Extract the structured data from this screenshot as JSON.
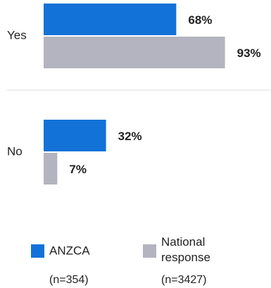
{
  "chart_data": {
    "type": "hbar",
    "categories": [
      "Yes",
      "No"
    ],
    "series": [
      {
        "name": "ANZCA",
        "color": "#1272d8",
        "values": [
          68,
          32
        ],
        "value_labels": [
          "68%",
          "32%"
        ],
        "sample": "(n=354)"
      },
      {
        "name": "National response",
        "color": "#b4b4c0",
        "values": [
          93,
          7
        ],
        "value_labels": [
          "93%",
          "7%"
        ],
        "sample": "(n=3427)"
      }
    ],
    "xlim": [
      0,
      100
    ]
  }
}
